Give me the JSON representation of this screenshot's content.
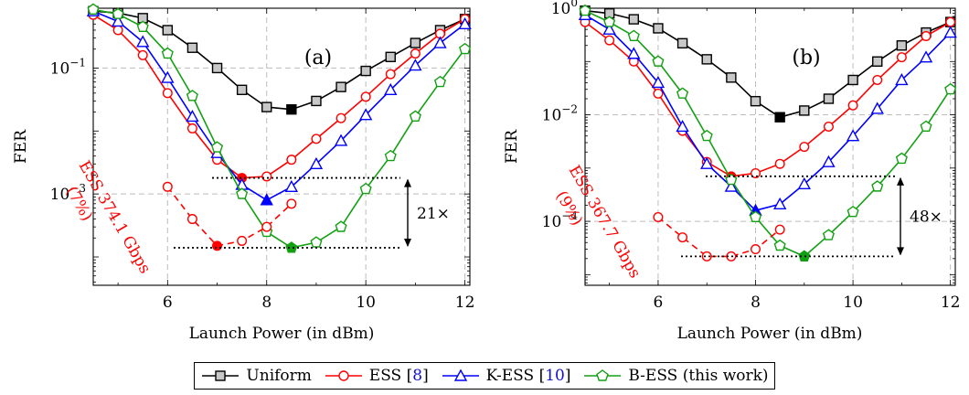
{
  "chart_data": [
    {
      "type": "line",
      "panel_label": "(a)",
      "xlabel": "Launch Power (in dBm)",
      "ylabel": "FER",
      "xlim": [
        4.5,
        12.1
      ],
      "ylim_log10": [
        -4.45,
        -0.05
      ],
      "yscale": "log",
      "x_ticks": [
        6,
        8,
        10,
        12
      ],
      "y_ticks": [
        {
          "label": "10",
          "exp": "−1",
          "value": 0.1
        },
        {
          "label": "10",
          "exp": "−3",
          "value": 0.001
        }
      ],
      "grid": true,
      "series": [
        {
          "name": "Uniform",
          "color": "#000000",
          "marker": "square",
          "x": [
            4.5,
            5,
            5.5,
            6,
            6.5,
            7,
            7.5,
            8,
            8.5,
            9,
            9.5,
            10,
            10.5,
            11,
            11.5,
            12
          ],
          "y": [
            0.8,
            0.75,
            0.62,
            0.4,
            0.21,
            0.1,
            0.045,
            0.024,
            0.022,
            0.03,
            0.05,
            0.09,
            0.15,
            0.25,
            0.4,
            0.6
          ],
          "highlight_x": 8.5
        },
        {
          "name": "ESS [8]",
          "color": "#ff0000",
          "marker": "circle",
          "x": [
            4.5,
            5,
            5.5,
            6,
            6.5,
            7,
            7.5,
            8,
            8.5,
            9,
            9.5,
            10,
            10.5,
            11,
            11.5,
            12
          ],
          "y": [
            0.7,
            0.4,
            0.16,
            0.04,
            0.011,
            0.0035,
            0.0018,
            0.0019,
            0.0035,
            0.0075,
            0.016,
            0.035,
            0.08,
            0.17,
            0.35,
            0.6
          ],
          "highlight_x": 7.5
        },
        {
          "name": "K-ESS [10]",
          "color": "#0000ff",
          "marker": "triangle",
          "x": [
            4.5,
            5,
            5.5,
            6,
            6.5,
            7,
            7.5,
            8,
            8.5,
            9,
            9.5,
            10,
            10.5,
            11,
            11.5,
            12
          ],
          "y": [
            0.8,
            0.55,
            0.26,
            0.07,
            0.017,
            0.0045,
            0.0014,
            0.0008,
            0.0013,
            0.003,
            0.007,
            0.018,
            0.045,
            0.11,
            0.25,
            0.5
          ],
          "highlight_x": 8
        },
        {
          "name": "B-ESS (this work)",
          "color": "#12a012",
          "marker": "pentagon",
          "x": [
            4.5,
            5,
            5.5,
            6,
            6.5,
            7,
            7.5,
            8,
            8.5,
            9,
            9.5,
            10,
            10.5,
            11,
            11.5,
            12
          ],
          "y": [
            0.85,
            0.72,
            0.45,
            0.17,
            0.036,
            0.0055,
            0.001,
            0.00025,
            0.00014,
            0.00017,
            0.0003,
            0.0012,
            0.004,
            0.017,
            0.06,
            0.2
          ],
          "highlight_x": 8.5
        },
        {
          "name": "ESS 374.1 Gbps",
          "color": "#ff0000",
          "marker": "circle",
          "dashed": true,
          "x": [
            6,
            6.5,
            7,
            7.5,
            8,
            8.5
          ],
          "y": [
            0.0013,
            0.0004,
            0.00015,
            0.00018,
            0.0003,
            0.0007
          ],
          "highlight_x": 7
        }
      ],
      "annotations": {
        "ess_label": "ESS",
        "rate_label": "374.1 Gbps",
        "percent_label": "(7%)",
        "gain_label": "21×"
      }
    },
    {
      "type": "line",
      "panel_label": "(b)",
      "xlabel": "Launch Power (in dBm)",
      "ylabel": "FER",
      "xlim": [
        4.5,
        12.1
      ],
      "ylim_log10": [
        -5.2,
        0.0
      ],
      "yscale": "log",
      "x_ticks": [
        6,
        8,
        10,
        12
      ],
      "y_ticks": [
        {
          "label": "10",
          "exp": "0",
          "value": 1
        },
        {
          "label": "10",
          "exp": "−2",
          "value": 0.01
        },
        {
          "label": "10",
          "exp": "−4",
          "value": 0.0001
        }
      ],
      "grid": true,
      "series": [
        {
          "name": "Uniform",
          "color": "#000000",
          "marker": "square",
          "x": [
            4.5,
            5,
            5.5,
            6,
            6.5,
            7,
            7.5,
            8,
            8.5,
            9,
            9.5,
            10,
            10.5,
            11,
            11.5,
            12
          ],
          "y": [
            0.9,
            0.8,
            0.62,
            0.42,
            0.22,
            0.11,
            0.05,
            0.018,
            0.009,
            0.012,
            0.02,
            0.045,
            0.1,
            0.2,
            0.35,
            0.55
          ],
          "highlight_x": 8.5
        },
        {
          "name": "ESS [8]",
          "color": "#ff0000",
          "marker": "circle",
          "x": [
            4.5,
            5,
            5.5,
            6,
            6.5,
            7,
            7.5,
            8,
            8.5,
            9,
            9.5,
            10,
            10.5,
            11,
            11.5,
            12
          ],
          "y": [
            0.55,
            0.25,
            0.1,
            0.025,
            0.005,
            0.0013,
            0.0007,
            0.0008,
            0.0012,
            0.0025,
            0.006,
            0.015,
            0.045,
            0.12,
            0.3,
            0.55
          ],
          "highlight_x": 7.5
        },
        {
          "name": "K-ESS [10]",
          "color": "#0000ff",
          "marker": "triangle",
          "x": [
            4.5,
            5,
            5.5,
            6,
            6.5,
            7,
            7.5,
            8,
            8.5,
            9,
            9.5,
            10,
            10.5,
            11,
            11.5,
            12
          ],
          "y": [
            0.75,
            0.4,
            0.14,
            0.04,
            0.006,
            0.0012,
            0.00045,
            0.00016,
            0.00021,
            0.0005,
            0.0013,
            0.004,
            0.013,
            0.045,
            0.12,
            0.35
          ],
          "highlight_x": 8
        },
        {
          "name": "B-ESS (this work)",
          "color": "#12a012",
          "marker": "pentagon",
          "x": [
            4.5,
            5,
            5.5,
            6,
            6.5,
            7,
            7.5,
            8,
            8.5,
            9,
            9.5,
            10,
            10.5,
            11,
            11.5,
            12
          ],
          "y": [
            0.9,
            0.55,
            0.3,
            0.1,
            0.025,
            0.004,
            0.0006,
            0.00012,
            3.5e-05,
            2.2e-05,
            5.5e-05,
            0.00015,
            0.00045,
            0.0015,
            0.006,
            0.03
          ],
          "highlight_x": 9
        },
        {
          "name": "ESS 367.7 Gbps",
          "color": "#ff0000",
          "marker": "circle",
          "dashed": true,
          "x": [
            6,
            6.5,
            7,
            7.5,
            8,
            8.5
          ],
          "y": [
            0.00012,
            5e-05,
            2.2e-05,
            2.2e-05,
            3e-05,
            7e-05
          ],
          "highlight_x": null
        }
      ],
      "annotations": {
        "ess_label": "ESS",
        "rate_label": "367.7 Gbps",
        "percent_label": "(9%)",
        "gain_label": "48×"
      }
    }
  ],
  "legend": {
    "items": [
      {
        "label": "Uniform",
        "cite": "",
        "suffix": "",
        "color": "#000000",
        "marker": "square"
      },
      {
        "label": "ESS [",
        "cite": "8",
        "suffix": "]",
        "color": "#ff0000",
        "marker": "circle"
      },
      {
        "label": "K-ESS [",
        "cite": "10",
        "suffix": "]",
        "color": "#0000ff",
        "marker": "triangle"
      },
      {
        "label": "B-ESS (this work)",
        "cite": "",
        "suffix": "",
        "color": "#12a012",
        "marker": "pentagon"
      }
    ]
  }
}
